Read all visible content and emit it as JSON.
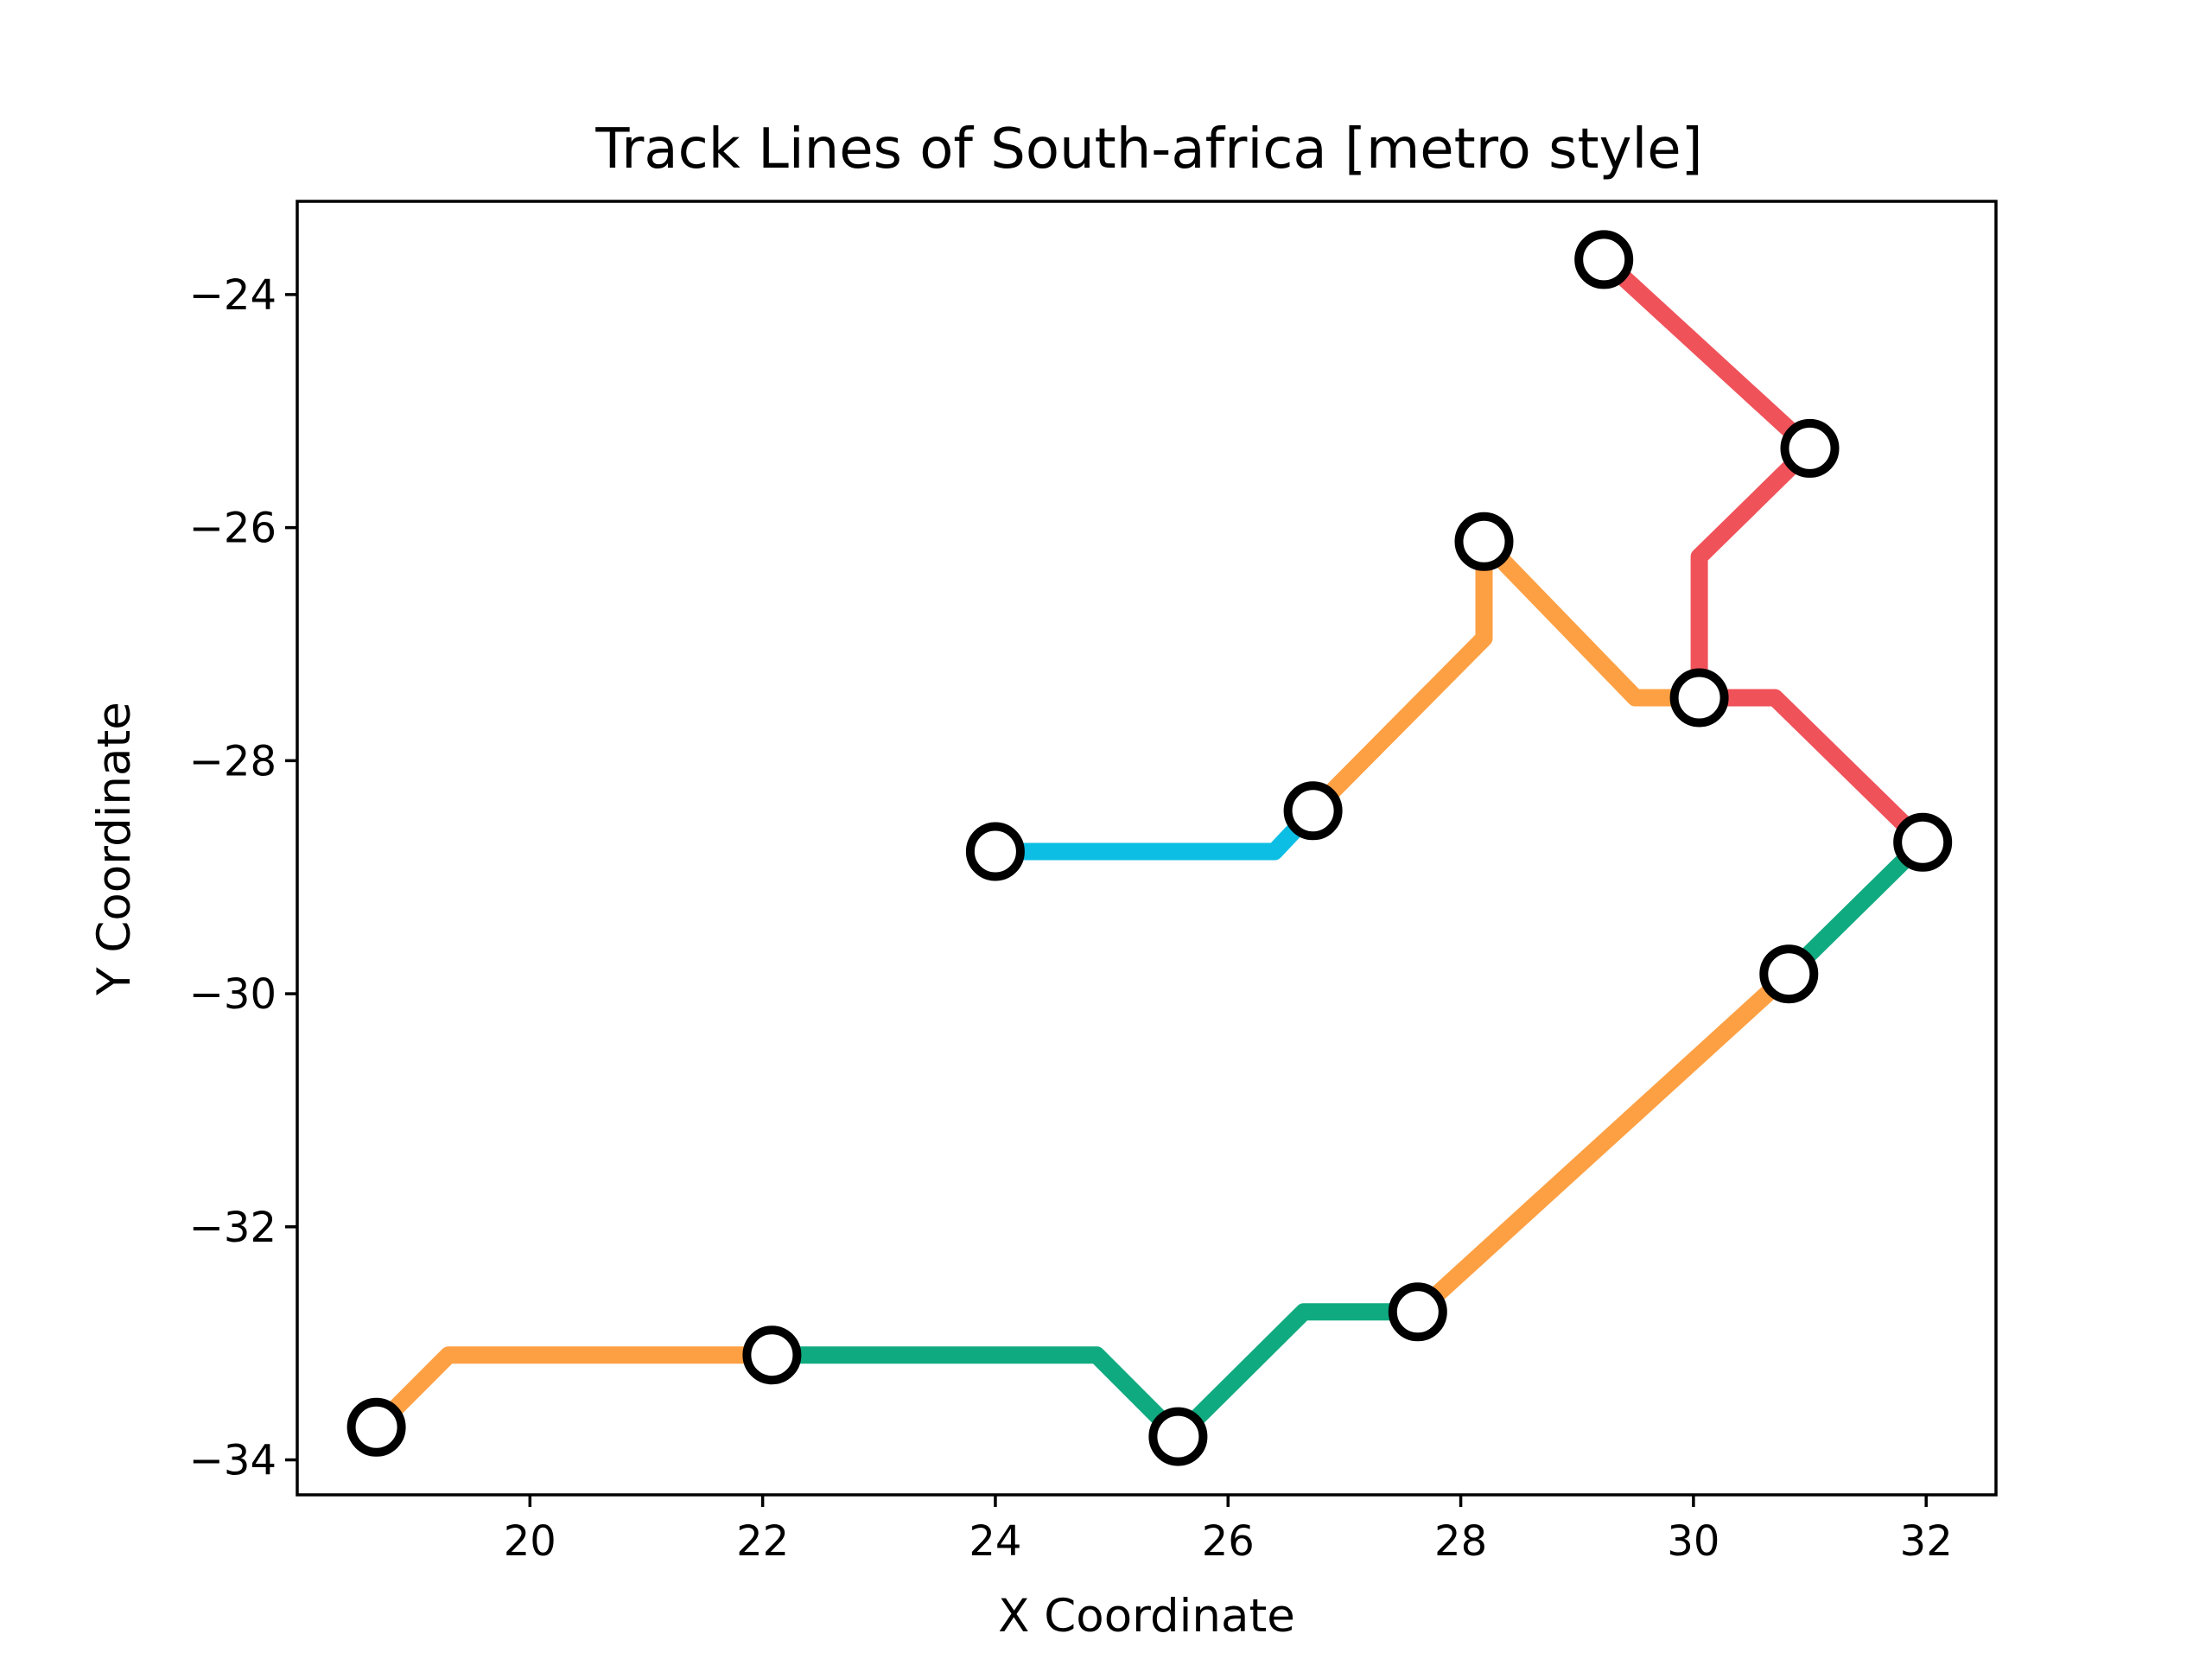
{
  "chart_data": {
    "type": "line",
    "title": "Track Lines of South-africa [metro style]",
    "xlabel": "X Coordinate",
    "ylabel": "Y Coordinate",
    "xlim": [
      18.0,
      32.6
    ],
    "ylim": [
      -34.3,
      -23.2
    ],
    "xticks": [
      20,
      22,
      24,
      26,
      28,
      30,
      32
    ],
    "yticks": [
      -24,
      -26,
      -28,
      -30,
      -32,
      -34
    ],
    "xtick_labels": [
      "20",
      "22",
      "24",
      "26",
      "28",
      "30",
      "32"
    ],
    "ytick_labels": [
      "−24",
      "−26",
      "−28",
      "−30",
      "−32",
      "−34"
    ],
    "grid": false,
    "legend": "none",
    "series": [
      {
        "color": "#f0525a",
        "points": [
          [
            29.23,
            -23.7
          ],
          [
            31.0,
            -25.32
          ],
          [
            30.05,
            -26.25
          ],
          [
            30.05,
            -27.46
          ],
          [
            30.7,
            -27.46
          ],
          [
            31.97,
            -28.7
          ]
        ]
      },
      {
        "color": "#fda043",
        "points": [
          [
            30.05,
            -27.46
          ],
          [
            29.5,
            -27.46
          ],
          [
            28.2,
            -26.12
          ],
          [
            28.2,
            -26.95
          ],
          [
            26.73,
            -28.43
          ]
        ]
      },
      {
        "color": "#0cbee4",
        "points": [
          [
            26.73,
            -28.43
          ],
          [
            26.4,
            -28.78
          ],
          [
            24.0,
            -28.78
          ]
        ]
      },
      {
        "color": "#10aa80",
        "points": [
          [
            31.97,
            -28.7
          ],
          [
            30.82,
            -29.83
          ]
        ]
      },
      {
        "color": "#fda043",
        "points": [
          [
            30.82,
            -29.83
          ],
          [
            27.63,
            -32.73
          ]
        ]
      },
      {
        "color": "#10aa80",
        "points": [
          [
            27.63,
            -32.73
          ],
          [
            26.65,
            -32.73
          ],
          [
            25.57,
            -33.8
          ],
          [
            24.87,
            -33.1
          ],
          [
            22.08,
            -33.1
          ]
        ]
      },
      {
        "color": "#fda043",
        "points": [
          [
            22.08,
            -33.1
          ],
          [
            19.3,
            -33.1
          ],
          [
            18.68,
            -33.72
          ]
        ]
      }
    ],
    "stations": [
      [
        29.23,
        -23.7
      ],
      [
        31.0,
        -25.32
      ],
      [
        28.2,
        -26.12
      ],
      [
        30.05,
        -27.46
      ],
      [
        26.73,
        -28.43
      ],
      [
        24.0,
        -28.78
      ],
      [
        31.97,
        -28.7
      ],
      [
        30.82,
        -29.83
      ],
      [
        27.63,
        -32.73
      ],
      [
        22.08,
        -33.1
      ],
      [
        25.57,
        -33.8
      ],
      [
        18.68,
        -33.72
      ]
    ]
  }
}
